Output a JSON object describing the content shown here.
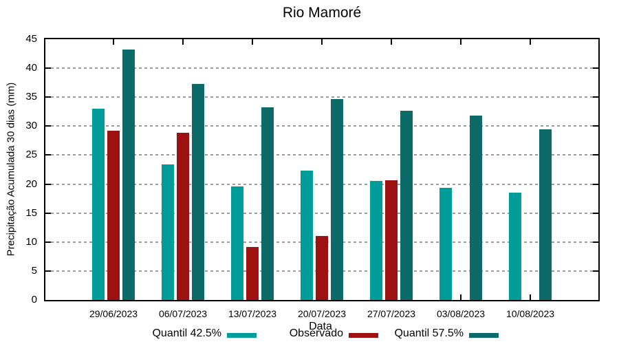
{
  "chart_data": {
    "type": "bar",
    "title": "Rio Mamoré",
    "xlabel": "Data",
    "ylabel": "Precipitação Acumulada 30 dias (mm)",
    "categories": [
      "29/06/2023",
      "06/07/2023",
      "13/07/2023",
      "20/07/2023",
      "27/07/2023",
      "03/08/2023",
      "10/08/2023"
    ],
    "series": [
      {
        "name": "Quantil 42.5%",
        "color": "#009c99",
        "values": [
          33.0,
          23.4,
          19.6,
          22.3,
          20.5,
          19.4,
          18.5
        ]
      },
      {
        "name": "Observado",
        "color": "#9e1111",
        "values": [
          29.2,
          28.9,
          9.2,
          11.0,
          20.7,
          null,
          null
        ]
      },
      {
        "name": "Quantil 57.5%",
        "color": "#0c6b68",
        "values": [
          43.2,
          37.3,
          33.3,
          34.7,
          32.7,
          31.8,
          29.4
        ]
      }
    ],
    "ylim": [
      0,
      45
    ],
    "ytick_step": 5,
    "yticks": [
      0,
      5,
      10,
      15,
      20,
      25,
      30,
      35,
      40,
      45
    ],
    "grid": true,
    "grid_color": "#9c9c9c",
    "axis_color": "#000000",
    "legend_position": "bottom"
  }
}
